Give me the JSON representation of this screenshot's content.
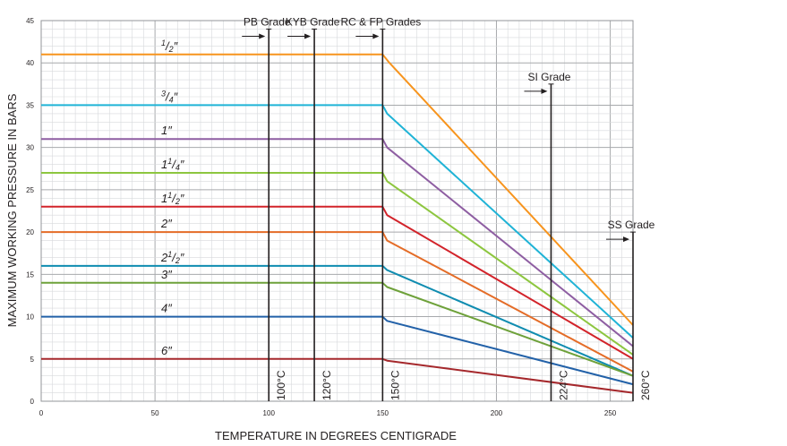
{
  "chart_data": {
    "type": "line",
    "xlabel": "TEMPERATURE IN DEGREES CENTIGRADE",
    "ylabel": "MAXIMUM WORKING PRESSURE IN BARS",
    "xlim": [
      0,
      260
    ],
    "ylim": [
      0,
      45
    ],
    "x_ticks": [
      "0",
      "50",
      "100",
      "150",
      "200",
      "250"
    ],
    "y_ticks": [
      "0",
      "5",
      "10",
      "15",
      "20",
      "25",
      "30",
      "35",
      "40",
      "45"
    ],
    "grid": true,
    "series": [
      {
        "name": "1/2\"",
        "label_main": "",
        "label_sup": "1",
        "label_sub": "2",
        "label_suffix": "″",
        "color": "#f7941d",
        "points": [
          [
            0,
            41
          ],
          [
            150,
            41
          ],
          [
            153,
            40
          ],
          [
            260,
            9
          ]
        ]
      },
      {
        "name": "3/4\"",
        "label_main": "",
        "label_sup": "3",
        "label_sub": "4",
        "label_suffix": "″",
        "color": "#1fb3d6",
        "points": [
          [
            0,
            35
          ],
          [
            150,
            35
          ],
          [
            152,
            34
          ],
          [
            260,
            7.5
          ]
        ]
      },
      {
        "name": "1\"",
        "label_main": "1",
        "label_sup": "",
        "label_sub": "",
        "label_suffix": "″",
        "color": "#8e5ea2",
        "points": [
          [
            0,
            31
          ],
          [
            150,
            31
          ],
          [
            152,
            30
          ],
          [
            260,
            6.5
          ]
        ]
      },
      {
        "name": "1 1/4\"",
        "label_main": "1",
        "label_sup": "1",
        "label_sub": "4",
        "label_suffix": "″",
        "color": "#8dc63f",
        "points": [
          [
            0,
            27
          ],
          [
            150,
            27
          ],
          [
            152,
            26
          ],
          [
            260,
            5.5
          ]
        ]
      },
      {
        "name": "1 1/2\"",
        "label_main": "1",
        "label_sup": "1",
        "label_sub": "2",
        "label_suffix": "″",
        "color": "#d2232a",
        "points": [
          [
            0,
            23
          ],
          [
            150,
            23
          ],
          [
            152,
            22
          ],
          [
            260,
            5
          ]
        ]
      },
      {
        "name": "2\"",
        "label_main": "2",
        "label_sup": "",
        "label_sub": "",
        "label_suffix": "″",
        "color": "#e46c27",
        "points": [
          [
            0,
            20
          ],
          [
            150,
            20
          ],
          [
            152,
            19
          ],
          [
            260,
            3.5
          ]
        ]
      },
      {
        "name": "2 1/2\"",
        "label_main": "2",
        "label_sup": "1",
        "label_sub": "2",
        "label_suffix": "″",
        "color": "#0f8cb0",
        "points": [
          [
            0,
            16
          ],
          [
            150,
            16
          ],
          [
            152,
            15.5
          ],
          [
            260,
            3
          ]
        ]
      },
      {
        "name": "3\"",
        "label_main": "3",
        "label_sup": "",
        "label_sub": "",
        "label_suffix": "″",
        "color": "#6ea13a",
        "points": [
          [
            0,
            14
          ],
          [
            150,
            14
          ],
          [
            152,
            13.5
          ],
          [
            260,
            3
          ]
        ]
      },
      {
        "name": "4\"",
        "label_main": "4",
        "label_sup": "",
        "label_sub": "",
        "label_suffix": "″",
        "color": "#2261a8",
        "points": [
          [
            0,
            10
          ],
          [
            150,
            10
          ],
          [
            152,
            9.5
          ],
          [
            260,
            2
          ]
        ]
      },
      {
        "name": "6\"",
        "label_main": "6",
        "label_sup": "",
        "label_sub": "",
        "label_suffix": "″",
        "color": "#a5282c",
        "points": [
          [
            0,
            5
          ],
          [
            150,
            5
          ],
          [
            152,
            4.8
          ],
          [
            260,
            1
          ]
        ]
      }
    ],
    "grade_markers": [
      {
        "label": "PB Grade",
        "x": 100,
        "top": 44,
        "temp_label": "100°C"
      },
      {
        "label": "KYB Grade",
        "x": 120,
        "top": 44,
        "temp_label": "120°C"
      },
      {
        "label": "RC & FP Grades",
        "x": 150,
        "top": 44,
        "temp_label": "150°C"
      },
      {
        "label": "SI Grade",
        "x": 224,
        "top": 37.5,
        "temp_label": "224°C"
      },
      {
        "label": "SS Grade",
        "x": 260,
        "top": 20,
        "temp_label": "260°C"
      }
    ]
  }
}
